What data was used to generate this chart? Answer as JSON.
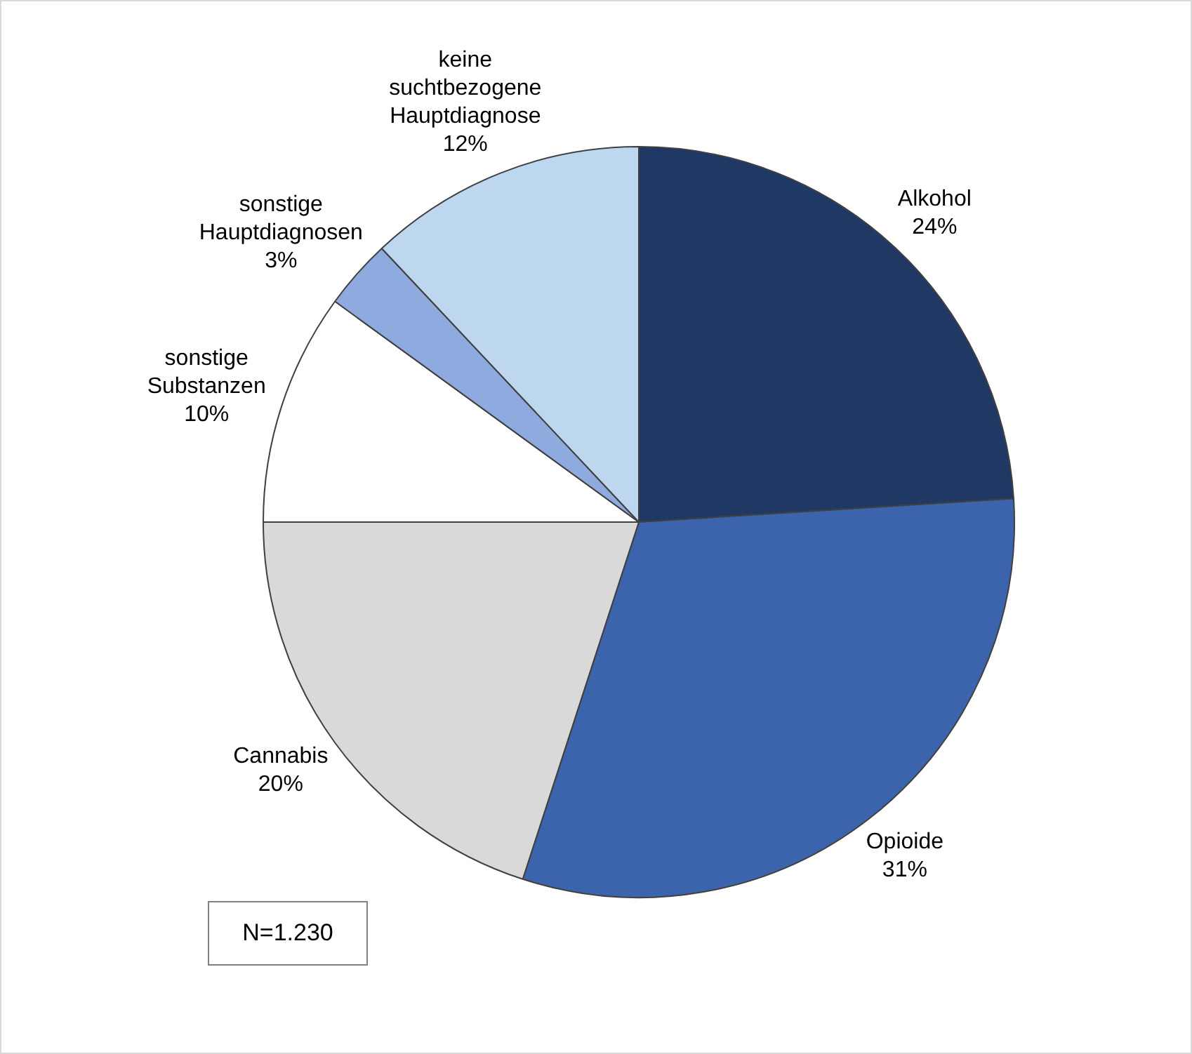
{
  "chart_data": {
    "type": "pie",
    "categories": [
      "Alkohol",
      "Opioide",
      "Cannabis",
      "sonstige Substanzen",
      "sonstige Hauptdiagnosen",
      "keine suchtbezogene Hauptdiagnose"
    ],
    "values": [
      24,
      31,
      20,
      10,
      3,
      12
    ],
    "value_labels": [
      "24%",
      "31%",
      "20%",
      "10%",
      "3%",
      "12%"
    ],
    "colors": [
      "#203864",
      "#3c64ad",
      "#d9d9d9",
      "#ffffff",
      "#8eaadf",
      "#bdd7ee"
    ],
    "annotations": [
      "N=1.230"
    ],
    "legend": false
  }
}
